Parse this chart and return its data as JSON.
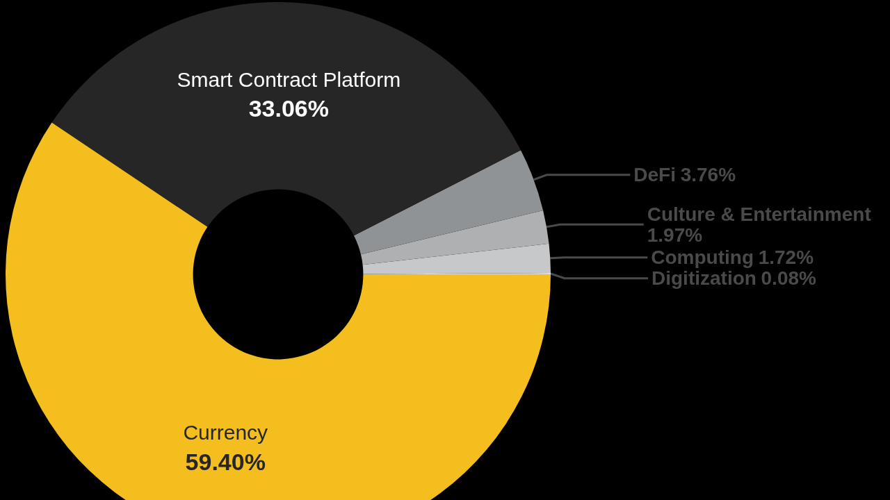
{
  "chart_data": {
    "type": "donut",
    "categories": [
      "Digitization",
      "Computing",
      "Culture & Entertainment",
      "DeFi",
      "Smart Contract Platform",
      "Currency"
    ],
    "values": [
      0.08,
      1.72,
      1.97,
      3.76,
      33.06,
      59.4
    ],
    "value_labels": [
      "0.08%",
      "1.72%",
      "1.97%",
      "3.76%",
      "33.06%",
      "59.40%"
    ],
    "colors": [
      "#dedede",
      "#c6c8c9",
      "#aeb0b2",
      "#909395",
      "#262626",
      "#f4be1e"
    ],
    "legend": false
  }
}
